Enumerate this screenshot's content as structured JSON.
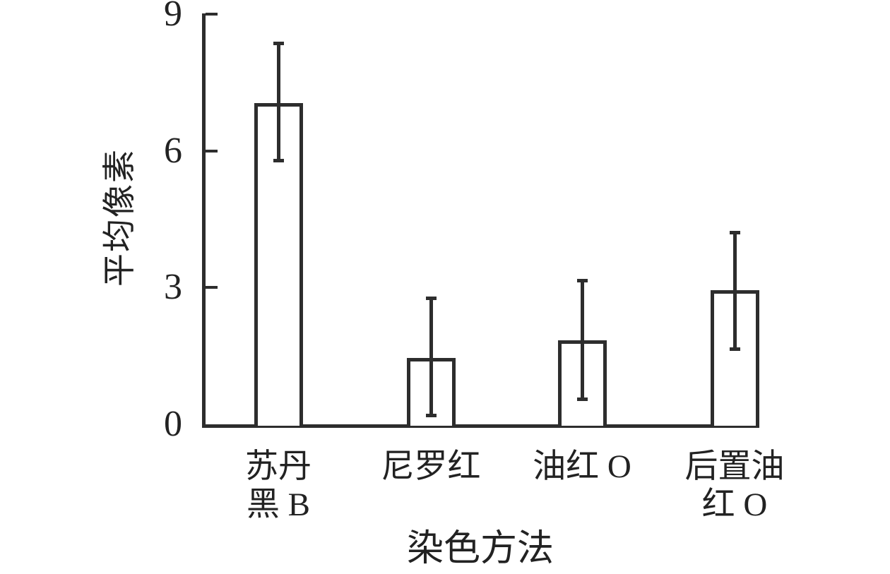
{
  "chart_data": {
    "type": "bar",
    "title": "",
    "xlabel": "染色方法",
    "ylabel": "平均像素",
    "categories": [
      "苏丹黑 B",
      "尼罗红",
      "油红 O",
      "后置油红 O"
    ],
    "category_label_lines": [
      [
        "苏丹",
        "黑 B"
      ],
      [
        "尼罗红"
      ],
      [
        "油红 O"
      ],
      [
        "后置油",
        "红 O"
      ]
    ],
    "values": [
      7.05,
      1.45,
      1.85,
      2.95
    ],
    "error_low": [
      5.8,
      0.2,
      0.55,
      1.65
    ],
    "error_high": [
      8.35,
      2.75,
      3.15,
      4.2
    ],
    "yticks": [
      0,
      3,
      6,
      9
    ],
    "ylim": [
      0,
      9
    ],
    "grid": false,
    "legend": null,
    "bar_fill": "#ffffff",
    "line_color": "#2d2d2d",
    "text_color": "#222222"
  }
}
